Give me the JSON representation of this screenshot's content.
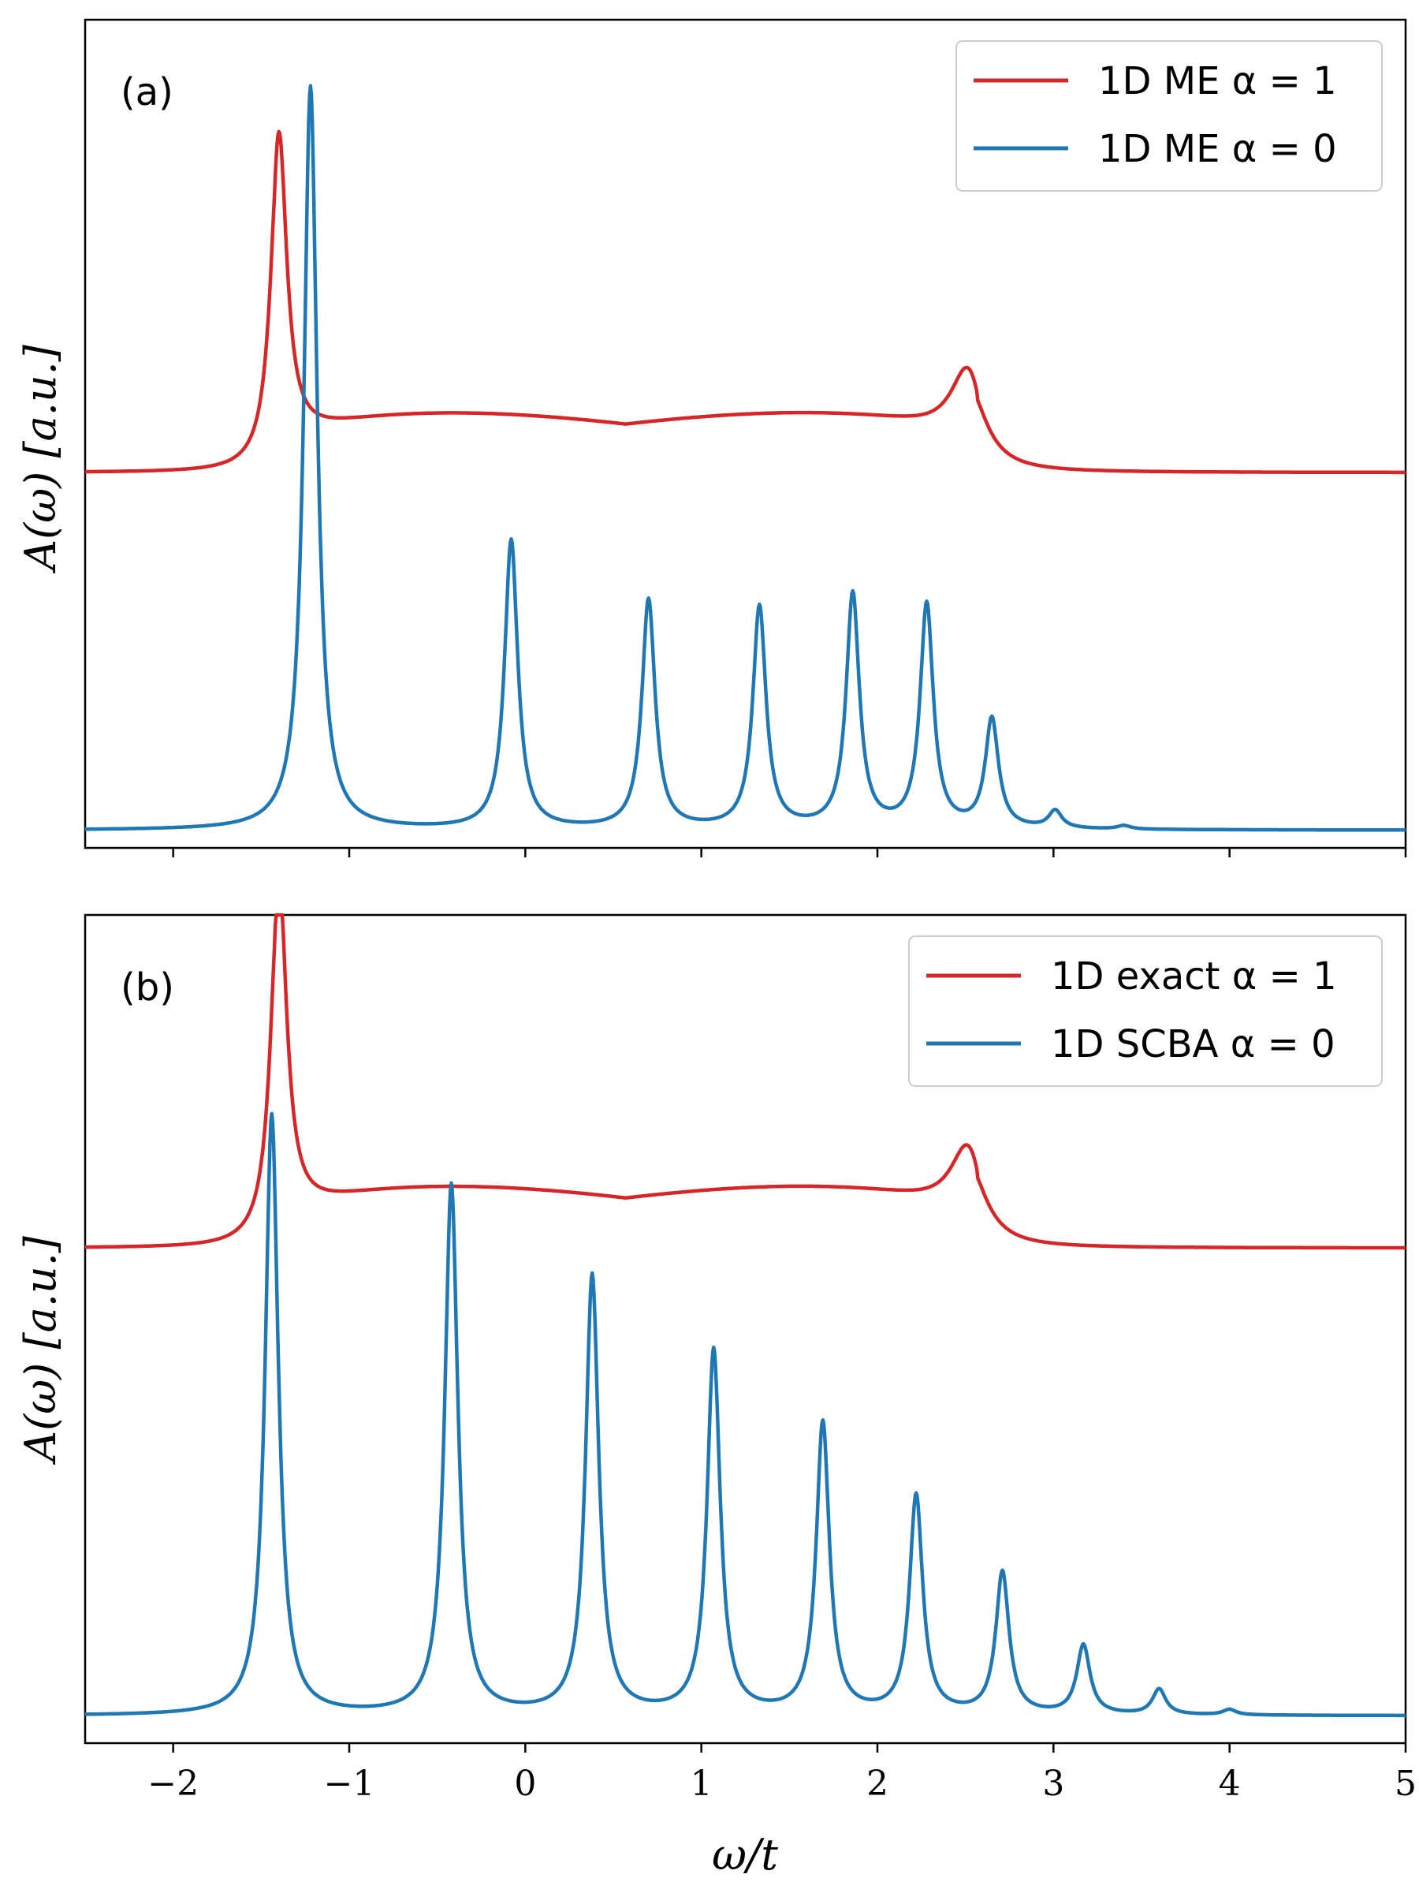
{
  "figure": {
    "x_axis_label": "ω/t",
    "x_ticks": [
      -2,
      -1,
      0,
      1,
      2,
      3,
      4,
      5
    ],
    "x_tick_labels": [
      "−2",
      "−1",
      "0",
      "1",
      "2",
      "3",
      "4",
      "5"
    ]
  },
  "chart_data": [
    {
      "type": "line",
      "panel": "(a)",
      "xlabel": "",
      "ylabel": "A(ω) [a.u.]",
      "xlim": [
        -2.5,
        5
      ],
      "ylim": [
        -0.1,
        4.6
      ],
      "yticks_shown": false,
      "legend": "top-right",
      "series": [
        {
          "name": "1D ME α = 1",
          "color": "#d62728",
          "offset": 1.75,
          "base_level": 0.28,
          "band": [
            -1.43,
            2.57
          ],
          "band_height": 0.55,
          "edge_peaks": [
            {
              "x": -1.4,
              "height": 1.85,
              "width": 0.055
            },
            {
              "x": 2.52,
              "height": 0.48,
              "width": 0.12
            }
          ]
        },
        {
          "name": "1D ME α = 0",
          "color": "#1f77b4",
          "offset": 0.0,
          "base_level": 0.0,
          "peaks": [
            {
              "x": -1.22,
              "height": 4.22
            },
            {
              "x": -0.08,
              "height": 1.64
            },
            {
              "x": 0.7,
              "height": 1.3
            },
            {
              "x": 1.33,
              "height": 1.26
            },
            {
              "x": 1.86,
              "height": 1.33
            },
            {
              "x": 2.28,
              "height": 1.27
            },
            {
              "x": 2.65,
              "height": 0.62
            },
            {
              "x": 3.01,
              "height": 0.1
            },
            {
              "x": 3.4,
              "height": 0.02
            }
          ]
        }
      ]
    },
    {
      "type": "line",
      "panel": "(b)",
      "xlabel": "ω/t",
      "ylabel": "A(ω) [a.u.]",
      "xlim": [
        -2.5,
        5
      ],
      "ylim": [
        -0.15,
        4.4
      ],
      "yticks_shown": false,
      "legend": "top-right",
      "series": [
        {
          "name": "1D exact α = 1",
          "color": "#d62728",
          "offset": 2.22,
          "base_level": 0.35,
          "band": [
            -1.43,
            2.57
          ],
          "band_height": 0.55,
          "edge_peaks": [
            {
              "x": -1.4,
              "height": 1.95,
              "width": 0.055
            },
            {
              "x": 2.52,
              "height": 0.45,
              "width": 0.12
            }
          ]
        },
        {
          "name": "1D SCBA α = 0",
          "color": "#1f77b4",
          "offset": 0.0,
          "base_level": 0.0,
          "peaks": [
            {
              "x": -1.44,
              "height": 3.3
            },
            {
              "x": -0.42,
              "height": 2.91
            },
            {
              "x": 0.38,
              "height": 2.41
            },
            {
              "x": 1.07,
              "height": 2.0
            },
            {
              "x": 1.69,
              "height": 1.6
            },
            {
              "x": 2.22,
              "height": 1.2
            },
            {
              "x": 2.71,
              "height": 0.78
            },
            {
              "x": 3.17,
              "height": 0.38
            },
            {
              "x": 3.6,
              "height": 0.14
            },
            {
              "x": 4.0,
              "height": 0.03
            }
          ]
        }
      ]
    }
  ]
}
